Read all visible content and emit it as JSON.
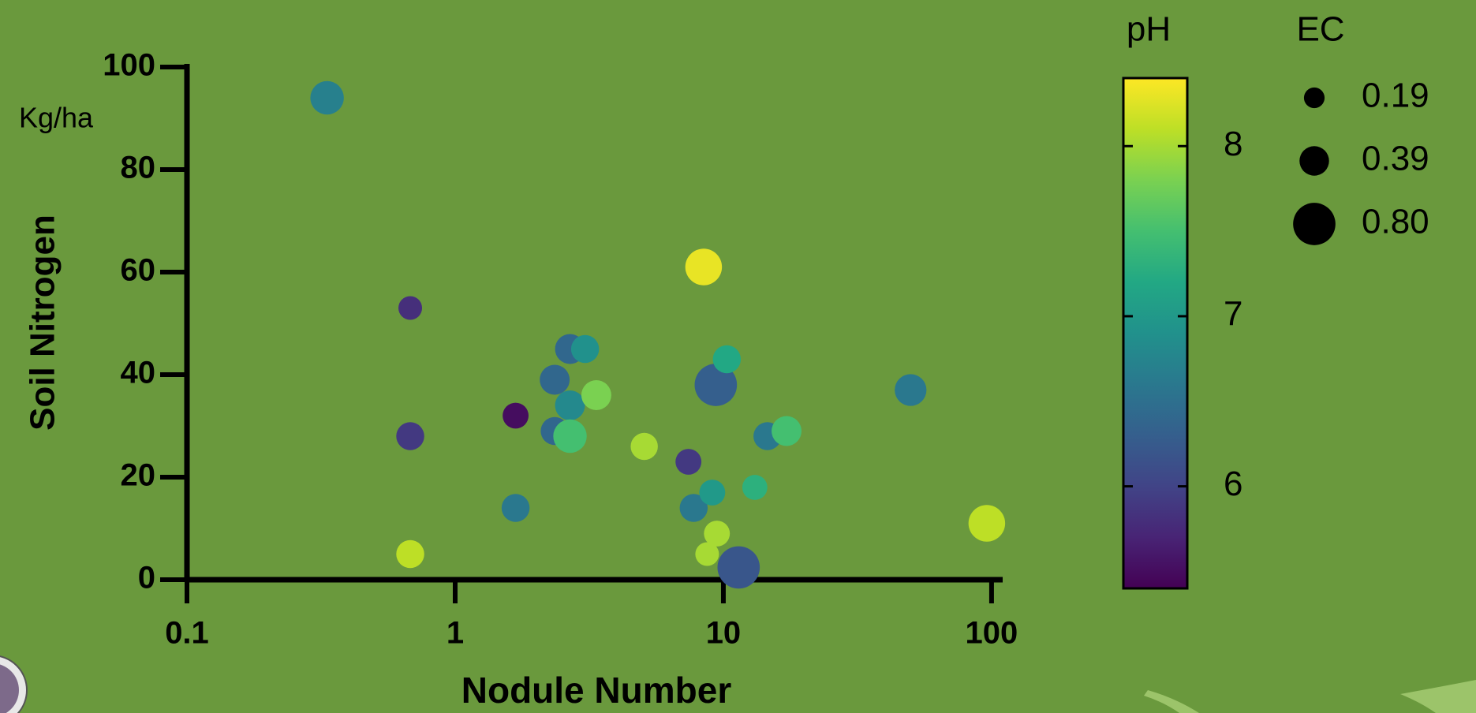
{
  "chart_data": {
    "type": "scatter",
    "x_label": "Nodule Number",
    "y_label": "Soil Nitrogen",
    "y_unit": "Kg/ha",
    "xscale": "log",
    "xlim": [
      0.1,
      110
    ],
    "xticks": [
      0.1,
      1,
      10,
      100
    ],
    "ylim": [
      0,
      100
    ],
    "yticks": [
      0,
      20,
      40,
      60,
      80,
      100
    ],
    "x": [
      0.333,
      0.68,
      0.68,
      0.68,
      1.68,
      1.68,
      2.35,
      2.35,
      2.68,
      3.05,
      2.68,
      2.68,
      3.36,
      5.07,
      7.41,
      8.44,
      9.37,
      7.75,
      9.09,
      9.46,
      8.7,
      11.4,
      10.3,
      13.1,
      14.6,
      17.2,
      49.9,
      96
    ],
    "values": [
      94,
      53,
      28,
      5,
      32,
      14,
      39,
      29,
      45,
      45,
      34,
      28,
      36,
      26,
      23,
      61,
      38,
      14,
      17,
      9,
      5,
      2.4,
      43,
      18,
      28,
      29,
      37,
      11
    ],
    "color_values": [
      6.7,
      5.8,
      5.9,
      8.1,
      5.5,
      6.6,
      6.4,
      6.4,
      6.4,
      6.9,
      6.8,
      7.5,
      7.8,
      8.0,
      5.9,
      8.3,
      6.3,
      6.6,
      7.0,
      8.0,
      8.0,
      6.2,
      7.2,
      7.3,
      6.6,
      7.5,
      6.6,
      8.1
    ],
    "sizes": [
      0.5,
      0.25,
      0.35,
      0.35,
      0.3,
      0.35,
      0.4,
      0.35,
      0.4,
      0.35,
      0.4,
      0.5,
      0.4,
      0.33,
      0.3,
      0.6,
      0.8,
      0.35,
      0.3,
      0.3,
      0.25,
      0.8,
      0.35,
      0.28,
      0.35,
      0.4,
      0.45,
      0.6
    ],
    "color_scale": {
      "title": "pH",
      "colormap": "viridis",
      "lim": [
        5.4,
        8.4
      ],
      "ticks": [
        6,
        7,
        8
      ]
    },
    "size_legend": {
      "title": "EC",
      "values": [
        0.19,
        0.39,
        {
          "value": 0.8,
          "label": "0.80"
        }
      ]
    }
  }
}
